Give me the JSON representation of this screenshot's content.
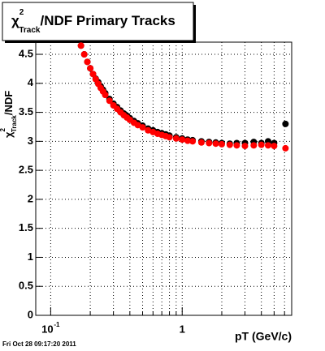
{
  "chart_data": {
    "type": "scatter",
    "title": {
      "symbol": "χ",
      "sup": "2",
      "sub": "Track",
      "rest": "/NDF  Primary Tracks"
    },
    "y_label": {
      "symbol": "χ",
      "sup": "2",
      "sub": "Track",
      "rest": "/NDF"
    },
    "x_label": "pT (GeV/c)",
    "footer": "Fri Oct 28 09:17:20 2011",
    "log_x": true,
    "grid": true,
    "xlim": [
      0.077,
      6.8
    ],
    "ylim": [
      0,
      4.71
    ],
    "xticks": [
      {
        "value": 0.1,
        "label": "10",
        "exponent": "-1"
      },
      1
    ],
    "xminor": [
      0.2,
      0.3,
      0.4,
      0.5,
      0.6,
      0.7,
      0.8,
      0.9,
      2,
      3,
      4,
      5,
      6
    ],
    "yticks": [
      0,
      0.5,
      1,
      1.5,
      2,
      2.5,
      3,
      3.5,
      4,
      4.5
    ],
    "x": [
      0.17,
      0.18,
      0.19,
      0.2,
      0.21,
      0.22,
      0.23,
      0.24,
      0.25,
      0.26,
      0.28,
      0.3,
      0.32,
      0.34,
      0.36,
      0.38,
      0.4,
      0.43,
      0.46,
      0.5,
      0.55,
      0.6,
      0.65,
      0.7,
      0.75,
      0.8,
      0.9,
      1.0,
      1.1,
      1.2,
      1.4,
      1.6,
      1.8,
      2.0,
      2.3,
      2.6,
      3.0,
      3.5,
      4.0,
      4.5,
      5.0,
      6.1
    ],
    "series": [
      {
        "color": "#000000",
        "values": [
          4.65,
          4.5,
          4.37,
          4.26,
          4.16,
          4.08,
          4.02,
          3.95,
          3.89,
          3.83,
          3.73,
          3.65,
          3.59,
          3.53,
          3.48,
          3.44,
          3.4,
          3.35,
          3.31,
          3.27,
          3.22,
          3.19,
          3.16,
          3.14,
          3.12,
          3.1,
          3.07,
          3.05,
          3.03,
          3.02,
          3.0,
          2.99,
          2.98,
          2.97,
          2.96,
          2.97,
          2.97,
          2.99,
          2.97,
          3.0,
          2.97,
          3.3
        ]
      },
      {
        "color": "#ff0000",
        "values": [
          4.65,
          4.5,
          4.37,
          4.26,
          4.16,
          4.07,
          3.99,
          3.92,
          3.86,
          3.8,
          3.7,
          3.62,
          3.56,
          3.5,
          3.45,
          3.41,
          3.37,
          3.32,
          3.28,
          3.24,
          3.19,
          3.16,
          3.13,
          3.11,
          3.09,
          3.07,
          3.05,
          3.03,
          3.01,
          3.0,
          2.98,
          2.97,
          2.96,
          2.95,
          2.94,
          2.93,
          2.92,
          2.93,
          2.94,
          2.93,
          2.92,
          2.88
        ]
      }
    ]
  }
}
